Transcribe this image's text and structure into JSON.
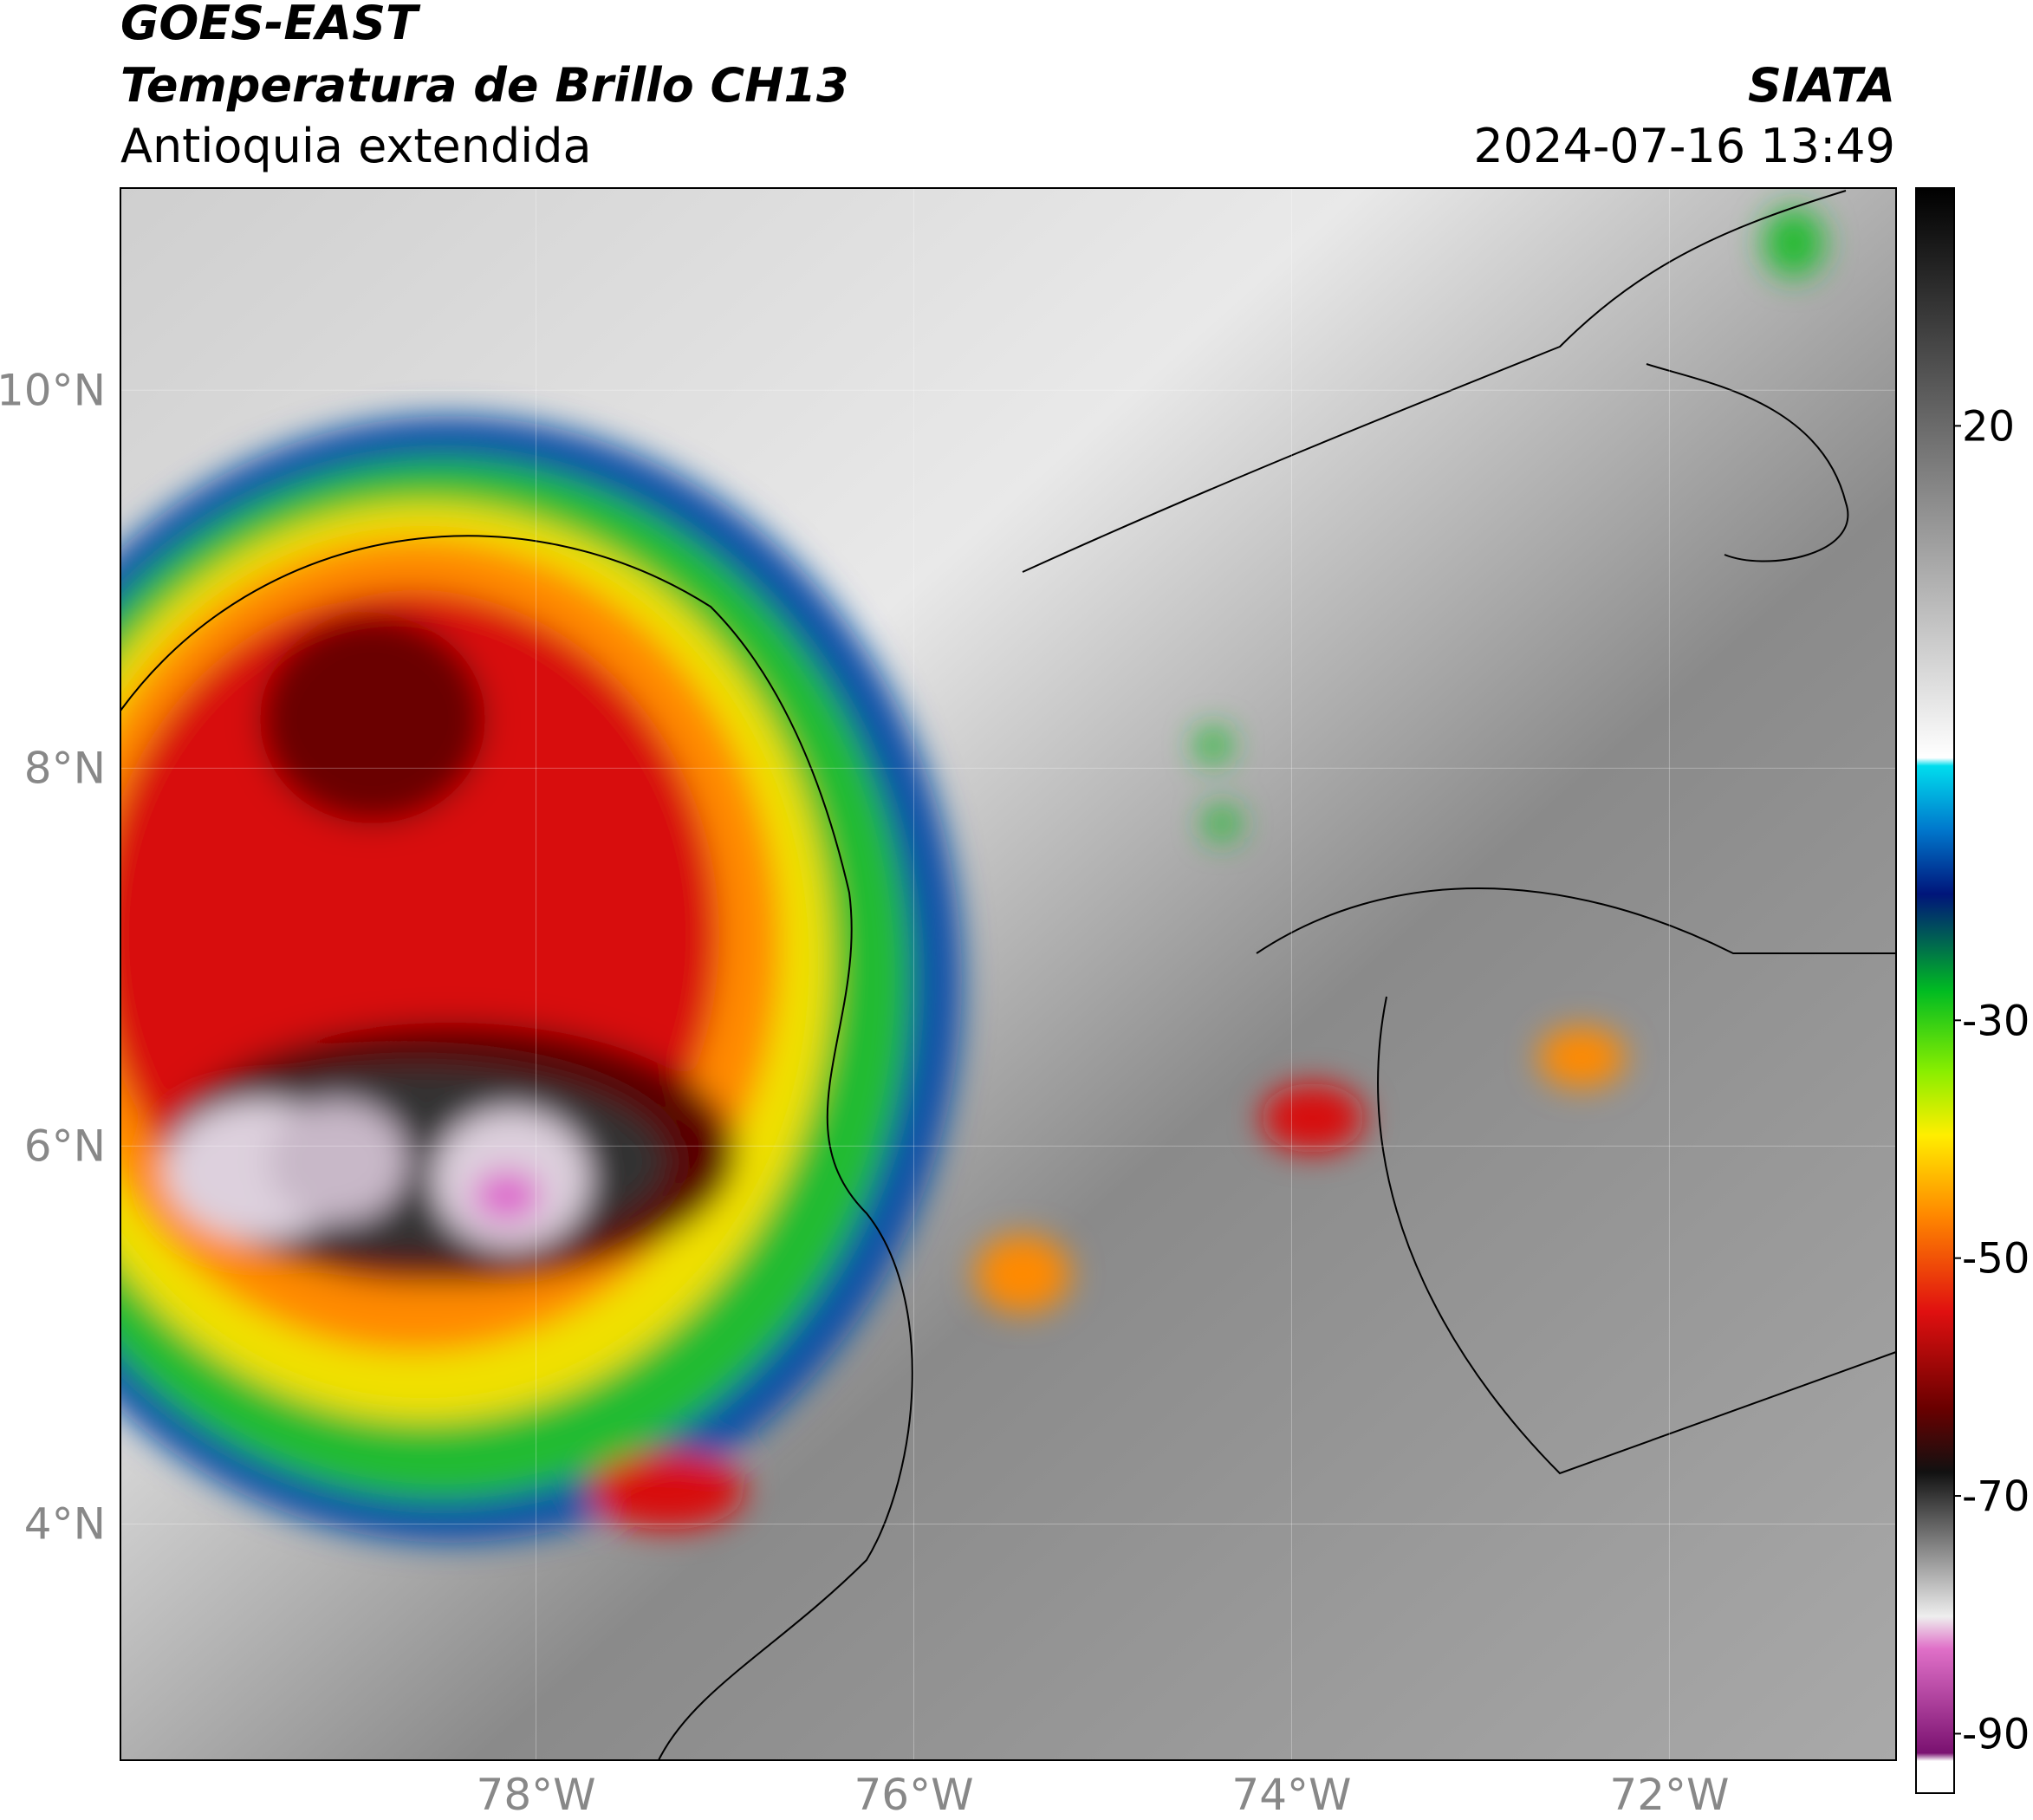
{
  "header": {
    "title": "GOES-EAST",
    "subtitle": "Temperatura de Brillo CH13",
    "region": "Antioquia extendida",
    "source": "SIATA",
    "datetime": "2024-07-16 13:49"
  },
  "map": {
    "xlim": [
      -80.2,
      -70.8
    ],
    "ylim": [
      2.75,
      11.07
    ],
    "xticks": [
      {
        "value": -78,
        "label": "78°W"
      },
      {
        "value": -76,
        "label": "76°W"
      },
      {
        "value": -74,
        "label": "74°W"
      },
      {
        "value": -72,
        "label": "72°W"
      }
    ],
    "yticks": [
      {
        "value": 10,
        "label": "10°N"
      },
      {
        "value": 8,
        "label": "8°N"
      },
      {
        "value": 6,
        "label": "6°N"
      },
      {
        "value": 4,
        "label": "4°N"
      }
    ],
    "grid": true
  },
  "colorbar": {
    "lim": [
      -95,
      40
    ],
    "ticks": [
      20,
      -30,
      -50,
      -70,
      -90
    ]
  }
}
